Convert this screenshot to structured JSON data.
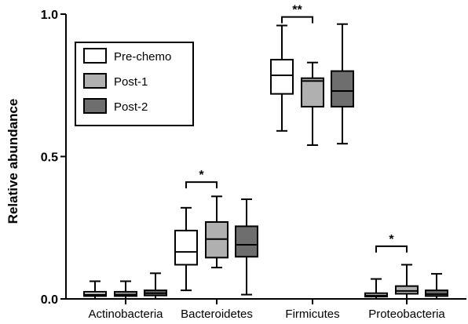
{
  "chart_data": {
    "type": "box",
    "ylabel": "Relative abundance",
    "xlabel": "",
    "ylim": [
      0,
      1.0
    ],
    "yticks": [
      0,
      0.5,
      1.0
    ],
    "ytick_labels": [
      "0.0",
      "0.5",
      "1.0"
    ],
    "grid": false,
    "legend_position": "top-left",
    "categories": [
      "Actinobacteria",
      "Bacteroidetes",
      "Firmicutes",
      "Proteobacteria"
    ],
    "series": [
      {
        "name": "Pre-chemo",
        "color": "#ffffff",
        "boxes": [
          {
            "min": 0.0,
            "q1": 0.01,
            "median": 0.015,
            "q3": 0.025,
            "max": 0.062
          },
          {
            "min": 0.03,
            "q1": 0.12,
            "median": 0.165,
            "q3": 0.24,
            "max": 0.32
          },
          {
            "min": 0.59,
            "q1": 0.72,
            "median": 0.785,
            "q3": 0.84,
            "max": 0.96
          },
          {
            "min": 0.0,
            "q1": 0.008,
            "median": 0.012,
            "q3": 0.02,
            "max": 0.07
          }
        ]
      },
      {
        "name": "Post-1",
        "color": "#b0b0b0",
        "boxes": [
          {
            "min": 0.0,
            "q1": 0.01,
            "median": 0.015,
            "q3": 0.025,
            "max": 0.062
          },
          {
            "min": 0.11,
            "q1": 0.145,
            "median": 0.21,
            "q3": 0.27,
            "max": 0.36
          },
          {
            "min": 0.54,
            "q1": 0.675,
            "median": 0.765,
            "q3": 0.775,
            "max": 0.83
          },
          {
            "min": 0.0,
            "q1": 0.018,
            "median": 0.028,
            "q3": 0.045,
            "max": 0.12
          }
        ]
      },
      {
        "name": "Post-2",
        "color": "#6e6e6e",
        "boxes": [
          {
            "min": 0.0,
            "q1": 0.012,
            "median": 0.02,
            "q3": 0.03,
            "max": 0.09
          },
          {
            "min": 0.015,
            "q1": 0.148,
            "median": 0.19,
            "q3": 0.255,
            "max": 0.35
          },
          {
            "min": 0.545,
            "q1": 0.675,
            "median": 0.73,
            "q3": 0.8,
            "max": 0.965
          },
          {
            "min": 0.0,
            "q1": 0.01,
            "median": 0.017,
            "q3": 0.03,
            "max": 0.088
          }
        ]
      }
    ],
    "annotations": [
      {
        "text": "*",
        "category": "Bacteroidetes",
        "from_series": 0,
        "to_series": 1,
        "y": 0.41
      },
      {
        "text": "**",
        "category": "Firmicutes",
        "from_series": 0,
        "to_series": 1,
        "y": 0.99
      },
      {
        "text": "*",
        "category": "Proteobacteria",
        "from_series": 0,
        "to_series": 1,
        "y": 0.185
      }
    ]
  }
}
